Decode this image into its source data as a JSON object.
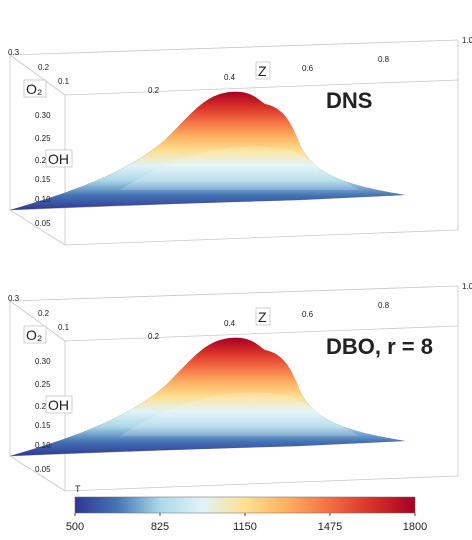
{
  "panels": [
    {
      "title": "DNS",
      "o2_label": "O₂",
      "z_label": "Z",
      "oh_label": "OH",
      "o2_ticks": [
        "0.3",
        "0.2",
        "0.1"
      ],
      "z_ticks": [
        "0.2",
        "0.4",
        "0.6",
        "0.8",
        "1.0"
      ],
      "oh_ticks": [
        "0.30",
        "0.25",
        "0.20",
        "0.15",
        "0.10",
        "0.05"
      ]
    },
    {
      "title": "DBO, r = 8",
      "o2_label": "O₂",
      "z_label": "Z",
      "oh_label": "OH",
      "o2_ticks": [
        "0.3",
        "0.2",
        "0.1"
      ],
      "z_ticks": [
        "0.2",
        "0.4",
        "0.6",
        "0.8",
        "1.0"
      ],
      "oh_ticks": [
        "0.30",
        "0.25",
        "0.20",
        "0.15",
        "0.10",
        "0.05"
      ]
    }
  ],
  "colorbar": {
    "label": "T",
    "range": [
      500,
      1800
    ],
    "ticks": [
      500,
      825,
      1150,
      1475,
      1800
    ],
    "colors": [
      "#313695",
      "#4575b4",
      "#abd9e9",
      "#e0f3f8",
      "#fee090",
      "#fdae61",
      "#f46d43",
      "#d73027",
      "#a50026"
    ]
  }
}
